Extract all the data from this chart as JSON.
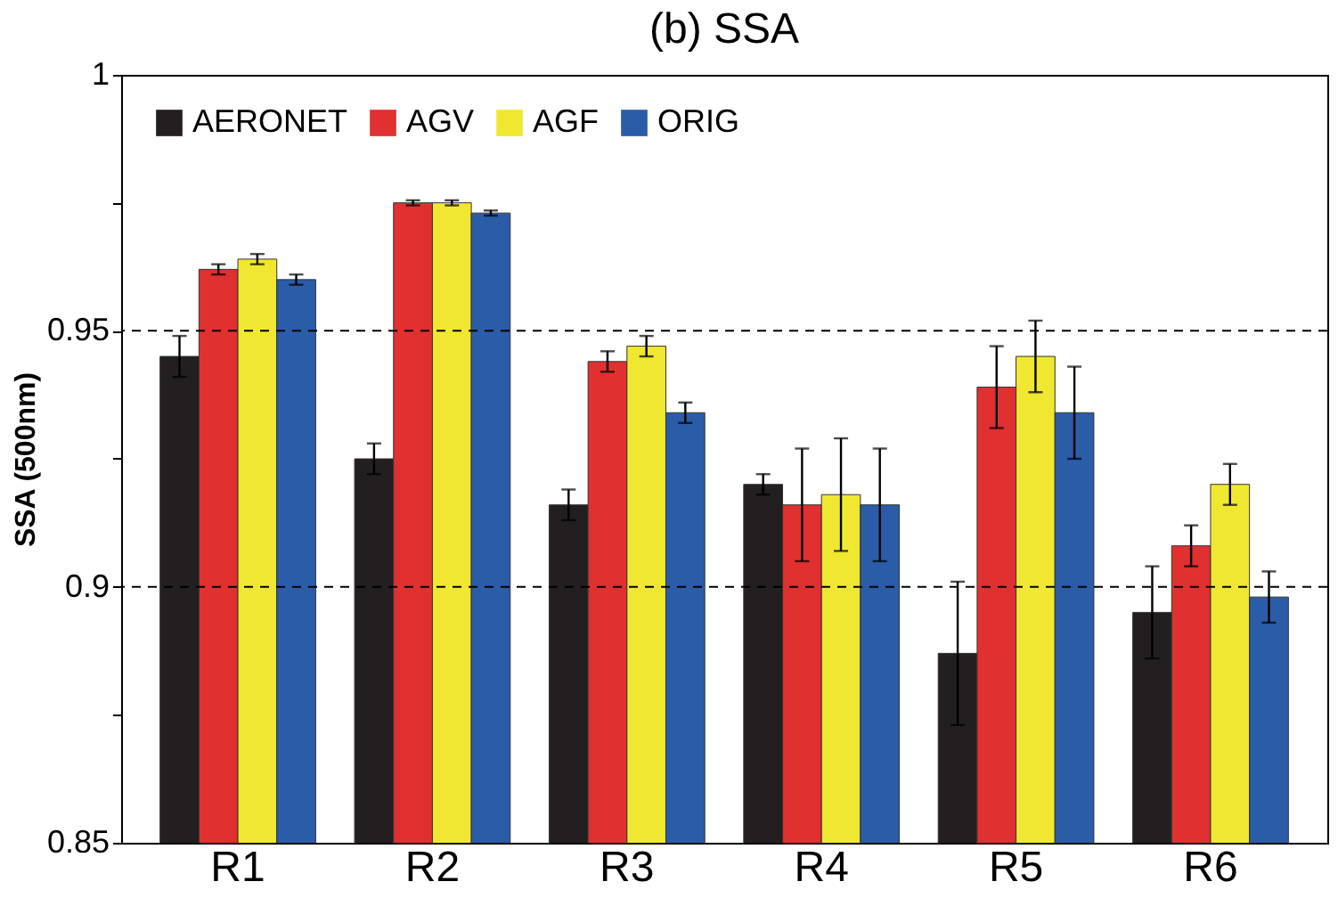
{
  "chart_data": {
    "type": "bar",
    "title": "(b) SSA",
    "ylabel": "SSA (500nm)",
    "categories": [
      "R1",
      "R2",
      "R3",
      "R4",
      "R5",
      "R6"
    ],
    "series": [
      {
        "name": "AERONET",
        "color": "#231f20",
        "values": [
          0.945,
          0.925,
          0.916,
          0.92,
          0.887,
          0.895
        ],
        "errors": [
          0.004,
          0.003,
          0.003,
          0.002,
          0.014,
          0.009
        ]
      },
      {
        "name": "AGV",
        "color": "#e03030",
        "values": [
          0.962,
          0.975,
          0.944,
          0.916,
          0.939,
          0.908
        ],
        "errors": [
          0.001,
          0.0005,
          0.002,
          0.011,
          0.008,
          0.004
        ]
      },
      {
        "name": "AGF",
        "color": "#f0e830",
        "values": [
          0.964,
          0.975,
          0.947,
          0.918,
          0.945,
          0.92
        ],
        "errors": [
          0.001,
          0.0005,
          0.002,
          0.011,
          0.007,
          0.004
        ]
      },
      {
        "name": "ORIG",
        "color": "#2a5ca8",
        "values": [
          0.96,
          0.973,
          0.934,
          0.916,
          0.934,
          0.898
        ],
        "errors": [
          0.001,
          0.0005,
          0.002,
          0.011,
          0.009,
          0.005
        ]
      }
    ],
    "ylim": [
      0.85,
      1
    ],
    "yticks": [
      0.85,
      {
        "value": 0.875,
        "label": null
      },
      0.9,
      {
        "value": 0.925,
        "label": null
      },
      0.95,
      {
        "value": 0.975,
        "label": null
      },
      1
    ],
    "ref_lines": [
      {
        "axis": "y",
        "value": 0.9,
        "line_style": "dashed",
        "color": "#000000"
      },
      {
        "axis": "y",
        "value": 0.95,
        "line_style": "dashed",
        "color": "#000000"
      }
    ],
    "grid": false,
    "legend": "top left"
  }
}
